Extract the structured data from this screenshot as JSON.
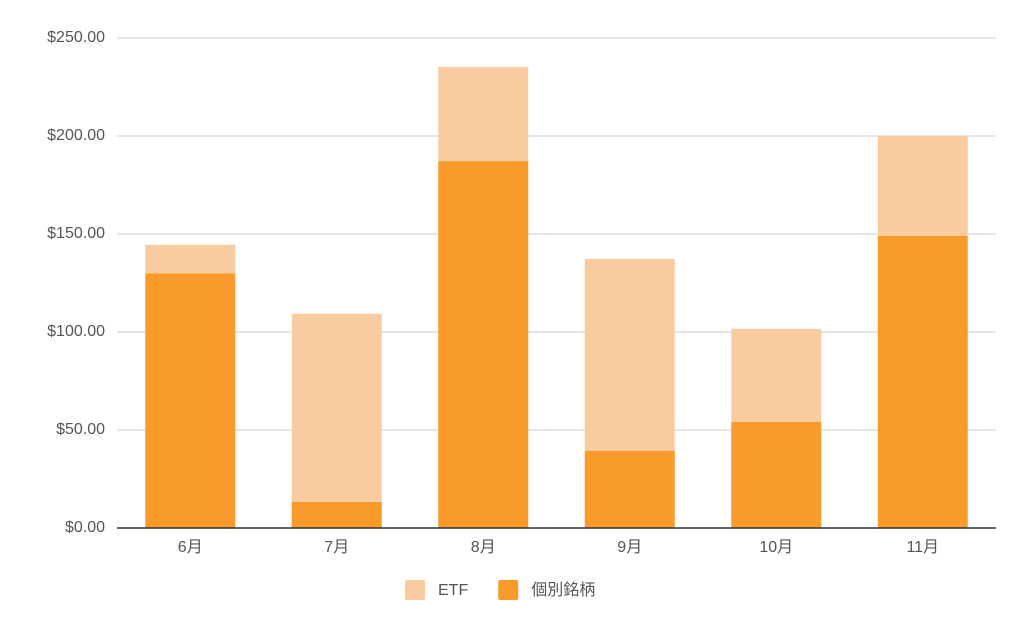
{
  "chart_data": {
    "type": "stacked_bar",
    "categories": [
      "6月",
      "7月",
      "8月",
      "9月",
      "10月",
      "11月"
    ],
    "series": [
      {
        "name": "ETF",
        "color": "#f8cba1",
        "values": [
          14.5,
          96,
          48,
          98,
          47.5,
          51
        ]
      },
      {
        "name": "個別銘柄",
        "color": "#f99b2b",
        "values": [
          130,
          13.3,
          187.2,
          39.3,
          54.1,
          149
        ]
      }
    ],
    "ylim": [
      0,
      250
    ],
    "yticks": [
      {
        "value": 0,
        "label": "$0.00"
      },
      {
        "value": 50,
        "label": "$50.00"
      },
      {
        "value": 100,
        "label": "$100.00"
      },
      {
        "value": 150,
        "label": "$150.00"
      },
      {
        "value": 200,
        "label": "$200.00"
      },
      {
        "value": 250,
        "label": "$250.00"
      }
    ],
    "grid": true,
    "legend": "bottom"
  }
}
